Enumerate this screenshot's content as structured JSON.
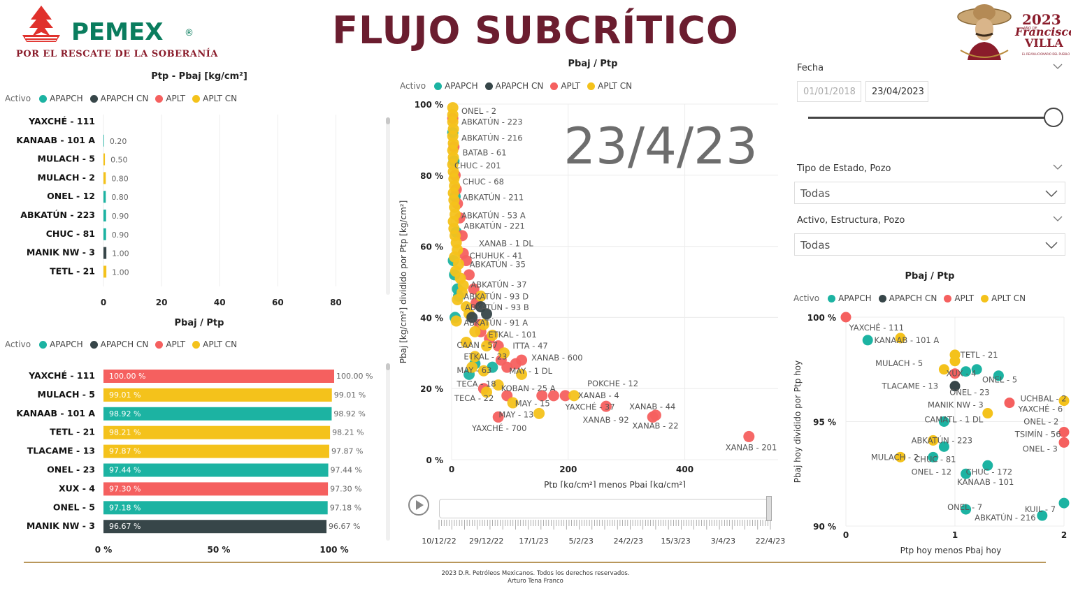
{
  "header": {
    "title": "FLUJO SUBCRÍTICO",
    "logo_word": "PEMEX",
    "logo_reg": "®",
    "logo_sub": "POR EL RESCATE DE LA SOBERANÍA",
    "year_logo": "2023",
    "year_logo_sub": "AÑO DE",
    "year_logo_name1": "Francisco",
    "year_logo_name2": "VILLA",
    "year_logo_motto": "EL REVOLUCIONARIO DEL PUEBLO"
  },
  "legend": {
    "key": "Activo",
    "items": [
      {
        "label": "APAPCH",
        "color": "#1cb3a2"
      },
      {
        "label": "APAPCH CN",
        "color": "#374649"
      },
      {
        "label": "APLT",
        "color": "#f5605f"
      },
      {
        "label": "APLT CN",
        "color": "#f4c21b"
      }
    ]
  },
  "chart_data": [
    {
      "type": "bar",
      "orientation": "horizontal",
      "title": "Ptp - Pbaj [kg/cm²]",
      "categories": [
        "YAXCHÉ - 111",
        "KANAAB - 101 A",
        "MULACH - 5",
        "MULACH - 2",
        "ONEL - 12",
        "ABKATÚN - 223",
        "CHUC - 81",
        "MANIK NW - 3",
        "TETL - 21"
      ],
      "values": [
        0.0,
        0.2,
        0.5,
        0.8,
        0.8,
        0.9,
        0.9,
        1.0,
        1.0
      ],
      "value_labels": [
        "",
        "0.20",
        "0.50",
        "0.80",
        "0.80",
        "0.90",
        "0.90",
        "1.00",
        "1.00"
      ],
      "series_activo": [
        "APLT",
        "APAPCH",
        "APLT CN",
        "APLT CN",
        "APAPCH",
        "APAPCH",
        "APAPCH",
        "APAPCH CN",
        "APLT CN"
      ],
      "xticks": [
        "0",
        "20",
        "40",
        "60",
        "80"
      ],
      "xlim": [
        0,
        90
      ]
    },
    {
      "type": "bar",
      "orientation": "horizontal",
      "title": "Pbaj / Ptp",
      "categories": [
        "YAXCHÉ - 111",
        "MULACH - 5",
        "KANAAB - 101 A",
        "TETL - 21",
        "TLACAME - 13",
        "ONEL - 23",
        "XUX - 4",
        "ONEL - 5",
        "MANIK NW - 3"
      ],
      "values": [
        100.0,
        99.01,
        98.92,
        98.21,
        97.87,
        97.44,
        97.3,
        97.18,
        96.67
      ],
      "value_labels": [
        "100.00 %",
        "99.01 %",
        "98.92 %",
        "98.21 %",
        "97.87 %",
        "97.44 %",
        "97.30 %",
        "97.18 %",
        "96.67 %"
      ],
      "series_activo": [
        "APLT",
        "APLT CN",
        "APAPCH",
        "APLT CN",
        "APLT CN",
        "APAPCH",
        "APLT",
        "APAPCH",
        "APAPCH CN"
      ],
      "xticks": [
        "0 %",
        "50 %",
        "100 %"
      ],
      "xlim": [
        0,
        100
      ]
    },
    {
      "type": "scatter",
      "title": "Pbaj / Ptp",
      "xlabel": "Ptp [kg/cm²] menos Pbaj [kg/cm²]",
      "ylabel": "Pbaj [kg/cm²] dividido por Ptp [kg/cm²]",
      "xlim": [
        0,
        560
      ],
      "ylim": [
        0,
        100
      ],
      "xticks": [
        "0",
        "200",
        "400"
      ],
      "yticks": [
        "0 %",
        "20 %",
        "40 %",
        "60 %",
        "80 %",
        "100 %"
      ],
      "watermark": "23/4/23",
      "labels": [
        {
          "t": "ONEL - 2",
          "x": 12,
          "y": 98
        },
        {
          "t": "ABKATÚN - 223",
          "x": 12,
          "y": 95
        },
        {
          "t": "ABKATÚN - 216",
          "x": 12,
          "y": 90.5
        },
        {
          "t": "BATAB - 61",
          "x": 14,
          "y": 86.3
        },
        {
          "t": "CHUC - 201",
          "x": 0,
          "y": 82.7
        },
        {
          "t": "CHUC - 68",
          "x": 14,
          "y": 78.2
        },
        {
          "t": "ABKATÚN - 211",
          "x": 14,
          "y": 73.8
        },
        {
          "t": "ABKATÚN - 53 A",
          "x": 12,
          "y": 68.7
        },
        {
          "t": "ABKATÚN - 221",
          "x": 16,
          "y": 65.7
        },
        {
          "t": "XANAB - 1 DL",
          "x": 42,
          "y": 60.8
        },
        {
          "t": "CHUHUK - 41",
          "x": 26,
          "y": 57.4
        },
        {
          "t": "ABKATÚN - 35",
          "x": 26,
          "y": 54.9
        },
        {
          "t": "ABKATÚN - 37",
          "x": 28,
          "y": 49.2
        },
        {
          "t": "ABKATÚN - 93 D",
          "x": 16,
          "y": 45.9
        },
        {
          "t": "ABKATÚN - 93 B",
          "x": 18,
          "y": 42.8
        },
        {
          "t": "ABKATÚN - 91 A",
          "x": 16,
          "y": 38.5
        },
        {
          "t": "ETKAL - 101",
          "x": 58,
          "y": 35.2
        },
        {
          "t": "CAAN - 57",
          "x": 4,
          "y": 32.2
        },
        {
          "t": "ITTA - 47",
          "x": 100,
          "y": 32.0
        },
        {
          "t": "ETKAL - 23",
          "x": 16,
          "y": 29.0
        },
        {
          "t": "XANAB - 600",
          "x": 132,
          "y": 28.7
        },
        {
          "t": "MAY - 63",
          "x": 4,
          "y": 25.1
        },
        {
          "t": "MAY - 1 DL",
          "x": 94,
          "y": 25.0
        },
        {
          "t": "TECA - 18",
          "x": 4,
          "y": 21.3
        },
        {
          "t": "KOBAN - 25 A",
          "x": 80,
          "y": 20.0
        },
        {
          "t": "POKCHE - 12",
          "x": 228,
          "y": 21.4
        },
        {
          "t": "TECA - 22",
          "x": 0,
          "y": 17.3
        },
        {
          "t": "XANAB - 4",
          "x": 212,
          "y": 18.1
        },
        {
          "t": "MAY - 15",
          "x": 104,
          "y": 15.8
        },
        {
          "t": "YAXCHÉ - 37",
          "x": 190,
          "y": 14.8
        },
        {
          "t": "XANAB - 44",
          "x": 300,
          "y": 14.9
        },
        {
          "t": "MAY - 13",
          "x": 76,
          "y": 12.7
        },
        {
          "t": "XANAB - 92",
          "x": 220,
          "y": 11.2
        },
        {
          "t": "XANAB - 22",
          "x": 305,
          "y": 9.5
        },
        {
          "t": "YAXCHÉ - 700",
          "x": 30,
          "y": 8.8
        },
        {
          "t": "XANAB - 201",
          "x": 465,
          "y": 3.4
        }
      ],
      "points_yellow": [
        [
          2,
          99
        ],
        [
          2,
          97
        ],
        [
          2,
          95
        ],
        [
          3,
          93
        ],
        [
          2,
          91
        ],
        [
          3,
          89
        ],
        [
          2,
          87
        ],
        [
          3,
          85
        ],
        [
          2,
          83
        ],
        [
          3,
          81
        ],
        [
          4,
          79
        ],
        [
          5,
          77
        ],
        [
          3,
          75
        ],
        [
          4,
          73
        ],
        [
          5,
          71
        ],
        [
          6,
          69
        ],
        [
          3,
          67
        ],
        [
          4,
          65
        ],
        [
          6,
          63
        ],
        [
          8,
          61
        ],
        [
          10,
          59
        ],
        [
          5,
          57
        ],
        [
          12,
          55
        ],
        [
          7,
          53
        ],
        [
          15,
          51
        ],
        [
          20,
          49
        ],
        [
          18,
          47
        ],
        [
          10,
          45
        ],
        [
          25,
          43
        ],
        [
          50,
          46
        ],
        [
          30,
          41
        ],
        [
          8,
          39
        ],
        [
          55,
          38
        ],
        [
          40,
          36
        ],
        [
          70,
          35
        ],
        [
          25,
          33
        ],
        [
          60,
          32
        ],
        [
          40,
          29
        ],
        [
          90,
          30
        ],
        [
          35,
          26
        ],
        [
          55,
          25
        ],
        [
          120,
          24
        ],
        [
          80,
          21
        ],
        [
          60,
          19
        ],
        [
          150,
          13
        ],
        [
          210,
          18
        ],
        [
          105,
          16
        ]
      ],
      "points_red": [
        [
          2,
          96
        ],
        [
          4,
          88
        ],
        [
          6,
          80
        ],
        [
          8,
          76
        ],
        [
          10,
          72
        ],
        [
          14,
          68
        ],
        [
          18,
          63
        ],
        [
          20,
          58
        ],
        [
          25,
          56
        ],
        [
          30,
          52
        ],
        [
          38,
          48
        ],
        [
          42,
          44
        ],
        [
          48,
          38
        ],
        [
          50,
          36
        ],
        [
          65,
          34
        ],
        [
          80,
          32
        ],
        [
          85,
          28
        ],
        [
          95,
          26
        ],
        [
          110,
          27
        ],
        [
          120,
          28
        ],
        [
          55,
          20
        ],
        [
          95,
          18
        ],
        [
          155,
          18
        ],
        [
          175,
          18
        ],
        [
          195,
          18
        ],
        [
          265,
          15
        ],
        [
          345,
          12
        ],
        [
          350,
          12.5
        ],
        [
          80,
          12
        ],
        [
          510,
          6.5
        ]
      ],
      "points_teal": [
        [
          2,
          92
        ],
        [
          4,
          84
        ],
        [
          6,
          74
        ],
        [
          8,
          64
        ],
        [
          3,
          56
        ],
        [
          5,
          52
        ],
        [
          10,
          48
        ],
        [
          12,
          46
        ],
        [
          6,
          40
        ],
        [
          40,
          27
        ],
        [
          30,
          24
        ],
        [
          70,
          26
        ]
      ],
      "points_dark": [
        [
          50,
          43
        ],
        [
          60,
          41
        ],
        [
          35,
          40
        ]
      ],
      "play_axis": {
        "dates": [
          "10/12/22",
          "29/12/22",
          "17/1/23",
          "5/2/23",
          "24/2/23",
          "15/3/23",
          "3/4/23",
          "22/4/23"
        ]
      }
    },
    {
      "type": "scatter",
      "title": "Pbaj / Ptp",
      "xlabel": "Ptp hoy menos Pbaj hoy",
      "ylabel": "Pbaj hoy dividido por Ptp hoy",
      "xlim": [
        0,
        2
      ],
      "ylim": [
        90,
        100
      ],
      "xticks": [
        "0",
        "1",
        "2"
      ],
      "yticks": [
        "90 %",
        "95 %",
        "100 %"
      ],
      "labels": [
        {
          "t": "YAXCHÉ - 111",
          "x": 0.03,
          "y": 99.5
        },
        {
          "t": "KANAAB - 101 A",
          "x": 0.26,
          "y": 98.9
        },
        {
          "t": "TETL - 21",
          "x": 1.05,
          "y": 98.2
        },
        {
          "t": "MULACH - 5",
          "x": 0.27,
          "y": 97.8
        },
        {
          "t": "XUX - 4",
          "x": 0.92,
          "y": 97.3
        },
        {
          "t": "ONEL - 5",
          "x": 1.25,
          "y": 97.0
        },
        {
          "t": "TLACAME - 13",
          "x": 0.33,
          "y": 96.7
        },
        {
          "t": "ONEL - 23",
          "x": 0.95,
          "y": 96.4
        },
        {
          "t": "UCHBAL - 2",
          "x": 1.6,
          "y": 96.1
        },
        {
          "t": "MANIK NW - 3",
          "x": 0.75,
          "y": 95.8
        },
        {
          "t": "YAXCHÉ - 6",
          "x": 1.58,
          "y": 95.6
        },
        {
          "t": "CAMATL - 1 DL",
          "x": 0.72,
          "y": 95.1
        },
        {
          "t": "ONEL - 2",
          "x": 1.63,
          "y": 95.0
        },
        {
          "t": "TSIMÍN - 56",
          "x": 1.55,
          "y": 94.4
        },
        {
          "t": "ABKATÚN - 223",
          "x": 0.6,
          "y": 94.1
        },
        {
          "t": "ONEL - 3",
          "x": 1.62,
          "y": 93.7
        },
        {
          "t": "MULACH - 2",
          "x": 0.23,
          "y": 93.3
        },
        {
          "t": "CHUC - 81",
          "x": 0.63,
          "y": 93.2
        },
        {
          "t": "ONEL - 12",
          "x": 0.6,
          "y": 92.6
        },
        {
          "t": "CHUC - 172",
          "x": 1.1,
          "y": 92.6
        },
        {
          "t": "KANAAB - 101",
          "x": 1.02,
          "y": 92.1
        },
        {
          "t": "ONEL - 7",
          "x": 0.93,
          "y": 90.9
        },
        {
          "t": "KUIL - 7",
          "x": 1.64,
          "y": 90.8
        },
        {
          "t": "ABKATÚN - 216",
          "x": 1.18,
          "y": 90.4
        }
      ],
      "points": [
        {
          "x": 0.0,
          "y": 100.0,
          "c": "#f5605f"
        },
        {
          "x": 0.2,
          "y": 98.9,
          "c": "#1cb3a2"
        },
        {
          "x": 0.5,
          "y": 99.0,
          "c": "#f4c21b"
        },
        {
          "x": 1.0,
          "y": 98.2,
          "c": "#f4c21b"
        },
        {
          "x": 1.0,
          "y": 97.9,
          "c": "#f4c21b"
        },
        {
          "x": 1.0,
          "y": 97.3,
          "c": "#f5605f"
        },
        {
          "x": 1.2,
          "y": 97.5,
          "c": "#1cb3a2"
        },
        {
          "x": 0.9,
          "y": 97.5,
          "c": "#f4c21b"
        },
        {
          "x": 1.0,
          "y": 96.7,
          "c": "#374649"
        },
        {
          "x": 1.4,
          "y": 97.2,
          "c": "#1cb3a2"
        },
        {
          "x": 1.1,
          "y": 97.4,
          "c": "#1cb3a2"
        },
        {
          "x": 1.5,
          "y": 95.9,
          "c": "#f5605f"
        },
        {
          "x": 2.0,
          "y": 96.0,
          "c": "#f4c21b"
        },
        {
          "x": 1.3,
          "y": 95.4,
          "c": "#f4c21b"
        },
        {
          "x": 0.9,
          "y": 95.0,
          "c": "#1cb3a2"
        },
        {
          "x": 2.0,
          "y": 94.5,
          "c": "#f5605f"
        },
        {
          "x": 0.8,
          "y": 94.1,
          "c": "#f4c21b"
        },
        {
          "x": 2.0,
          "y": 94.0,
          "c": "#f5605f"
        },
        {
          "x": 0.5,
          "y": 93.3,
          "c": "#f4c21b"
        },
        {
          "x": 0.9,
          "y": 93.8,
          "c": "#1cb3a2"
        },
        {
          "x": 0.8,
          "y": 93.3,
          "c": "#1cb3a2"
        },
        {
          "x": 1.3,
          "y": 92.9,
          "c": "#1cb3a2"
        },
        {
          "x": 1.1,
          "y": 92.5,
          "c": "#1cb3a2"
        },
        {
          "x": 1.1,
          "y": 90.8,
          "c": "#1cb3a2"
        },
        {
          "x": 2.0,
          "y": 91.1,
          "c": "#1cb3a2"
        },
        {
          "x": 1.8,
          "y": 90.5,
          "c": "#1cb3a2"
        }
      ]
    }
  ],
  "filters": {
    "fecha_label": "Fecha",
    "fecha_start": "01/01/2018",
    "fecha_end": "23/04/2023",
    "estado_label": "Tipo de Estado, Pozo",
    "estado_value": "Todas",
    "activo_label": "Activo, Estructura, Pozo",
    "activo_value": "Todas"
  },
  "footer": {
    "line1": "2023 D.R. Petróleos Mexicanos. Todos los derechos reservados.",
    "line2": "Arturo Tena Franco"
  }
}
